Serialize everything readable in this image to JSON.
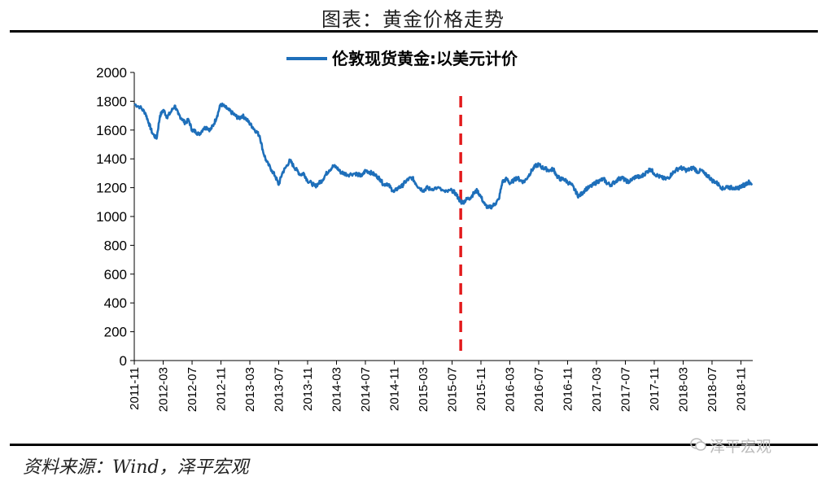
{
  "page": {
    "title": "图表：黄金价格走势",
    "source": "资料来源：Wind，泽平宏观",
    "watermark": "泽平宏观"
  },
  "colors": {
    "series": "#1E6FBA",
    "marker": "#E31A1C",
    "axis": "#000000"
  },
  "chart_data": {
    "type": "line",
    "title": "",
    "legend": [
      "伦敦现货黄金:以美元计价"
    ],
    "legend_position": "top-center",
    "ylabel": "",
    "xlabel": "",
    "ylim": [
      0,
      2000
    ],
    "yticks": [
      0,
      200,
      400,
      600,
      800,
      1000,
      1200,
      1400,
      1600,
      1800,
      2000
    ],
    "xlim": [
      2011.833,
      2018.97
    ],
    "xtick_labels": [
      "2011-11",
      "2012-03",
      "2012-07",
      "2012-11",
      "2013-03",
      "2013-07",
      "2013-11",
      "2014-03",
      "2014-07",
      "2014-11",
      "2015-03",
      "2015-07",
      "2015-11",
      "2016-03",
      "2016-07",
      "2016-11",
      "2017-03",
      "2017-07",
      "2017-11",
      "2018-03",
      "2018-07",
      "2018-11"
    ],
    "marker_line": {
      "x": 2015.6,
      "label": ""
    },
    "series": [
      {
        "name": "伦敦现货黄金:以美元计价",
        "x": [
          2011.833,
          2011.9,
          2011.96,
          2012.0,
          2012.04,
          2012.09,
          2012.13,
          2012.17,
          2012.21,
          2012.25,
          2012.3,
          2012.34,
          2012.38,
          2012.42,
          2012.46,
          2012.5,
          2012.54,
          2012.58,
          2012.63,
          2012.67,
          2012.71,
          2012.75,
          2012.79,
          2012.83,
          2012.88,
          2012.92,
          2012.96,
          2013.0,
          2013.04,
          2013.08,
          2013.12,
          2013.16,
          2013.2,
          2013.24,
          2013.28,
          2013.32,
          2013.36,
          2013.42,
          2013.46,
          2013.5,
          2013.54,
          2013.58,
          2013.63,
          2013.67,
          2013.71,
          2013.75,
          2013.79,
          2013.83,
          2013.88,
          2013.92,
          2013.96,
          2014.0,
          2014.04,
          2014.08,
          2014.13,
          2014.17,
          2014.21,
          2014.25,
          2014.3,
          2014.38,
          2014.42,
          2014.46,
          2014.5,
          2014.54,
          2014.58,
          2014.63,
          2014.67,
          2014.71,
          2014.75,
          2014.79,
          2014.83,
          2014.88,
          2014.92,
          2014.96,
          2015.0,
          2015.04,
          2015.08,
          2015.12,
          2015.17,
          2015.21,
          2015.25,
          2015.33,
          2015.42,
          2015.5,
          2015.54,
          2015.58,
          2015.6,
          2015.63,
          2015.67,
          2015.71,
          2015.75,
          2015.79,
          2015.83,
          2015.88,
          2015.92,
          2015.96,
          2016.0,
          2016.04,
          2016.08,
          2016.13,
          2016.17,
          2016.21,
          2016.25,
          2016.29,
          2016.33,
          2016.38,
          2016.42,
          2016.46,
          2016.5,
          2016.54,
          2016.58,
          2016.63,
          2016.67,
          2016.71,
          2016.75,
          2016.79,
          2016.83,
          2016.88,
          2016.92,
          2016.96,
          2017.0,
          2017.04,
          2017.08,
          2017.13,
          2017.17,
          2017.21,
          2017.25,
          2017.29,
          2017.33,
          2017.38,
          2017.42,
          2017.46,
          2017.5,
          2017.54,
          2017.58,
          2017.63,
          2017.67,
          2017.71,
          2017.75,
          2017.79,
          2017.83,
          2017.88,
          2017.92,
          2017.96,
          2018.0,
          2018.04,
          2018.08,
          2018.13,
          2018.17,
          2018.21,
          2018.25,
          2018.29,
          2018.33,
          2018.38,
          2018.42,
          2018.46,
          2018.5,
          2018.54,
          2018.58,
          2018.63,
          2018.67,
          2018.71,
          2018.75,
          2018.79,
          2018.83,
          2018.88,
          2018.92,
          2018.96
        ],
        "values": [
          1780,
          1760,
          1720,
          1650,
          1580,
          1540,
          1700,
          1740,
          1690,
          1720,
          1770,
          1710,
          1680,
          1650,
          1670,
          1600,
          1590,
          1570,
          1610,
          1620,
          1600,
          1640,
          1700,
          1780,
          1760,
          1740,
          1720,
          1700,
          1680,
          1700,
          1680,
          1650,
          1620,
          1590,
          1560,
          1450,
          1380,
          1320,
          1280,
          1220,
          1300,
          1340,
          1390,
          1350,
          1320,
          1290,
          1300,
          1250,
          1230,
          1210,
          1230,
          1250,
          1290,
          1320,
          1350,
          1340,
          1310,
          1300,
          1290,
          1300,
          1290,
          1280,
          1320,
          1310,
          1300,
          1280,
          1260,
          1220,
          1230,
          1200,
          1170,
          1200,
          1210,
          1240,
          1260,
          1270,
          1230,
          1200,
          1180,
          1200,
          1190,
          1200,
          1170,
          1180,
          1160,
          1120,
          1100,
          1100,
          1120,
          1130,
          1160,
          1180,
          1140,
          1080,
          1060,
          1070,
          1090,
          1120,
          1240,
          1260,
          1230,
          1250,
          1270,
          1250,
          1240,
          1280,
          1320,
          1350,
          1360,
          1340,
          1330,
          1320,
          1330,
          1280,
          1260,
          1260,
          1240,
          1220,
          1180,
          1140,
          1160,
          1190,
          1200,
          1220,
          1240,
          1250,
          1260,
          1230,
          1220,
          1240,
          1260,
          1270,
          1250,
          1240,
          1260,
          1280,
          1270,
          1290,
          1310,
          1330,
          1300,
          1280,
          1270,
          1260,
          1270,
          1300,
          1320,
          1340,
          1330,
          1320,
          1330,
          1340,
          1310,
          1320,
          1290,
          1280,
          1250,
          1240,
          1220,
          1190,
          1210,
          1200,
          1200,
          1190,
          1210,
          1220,
          1240,
          1230
        ]
      }
    ]
  }
}
